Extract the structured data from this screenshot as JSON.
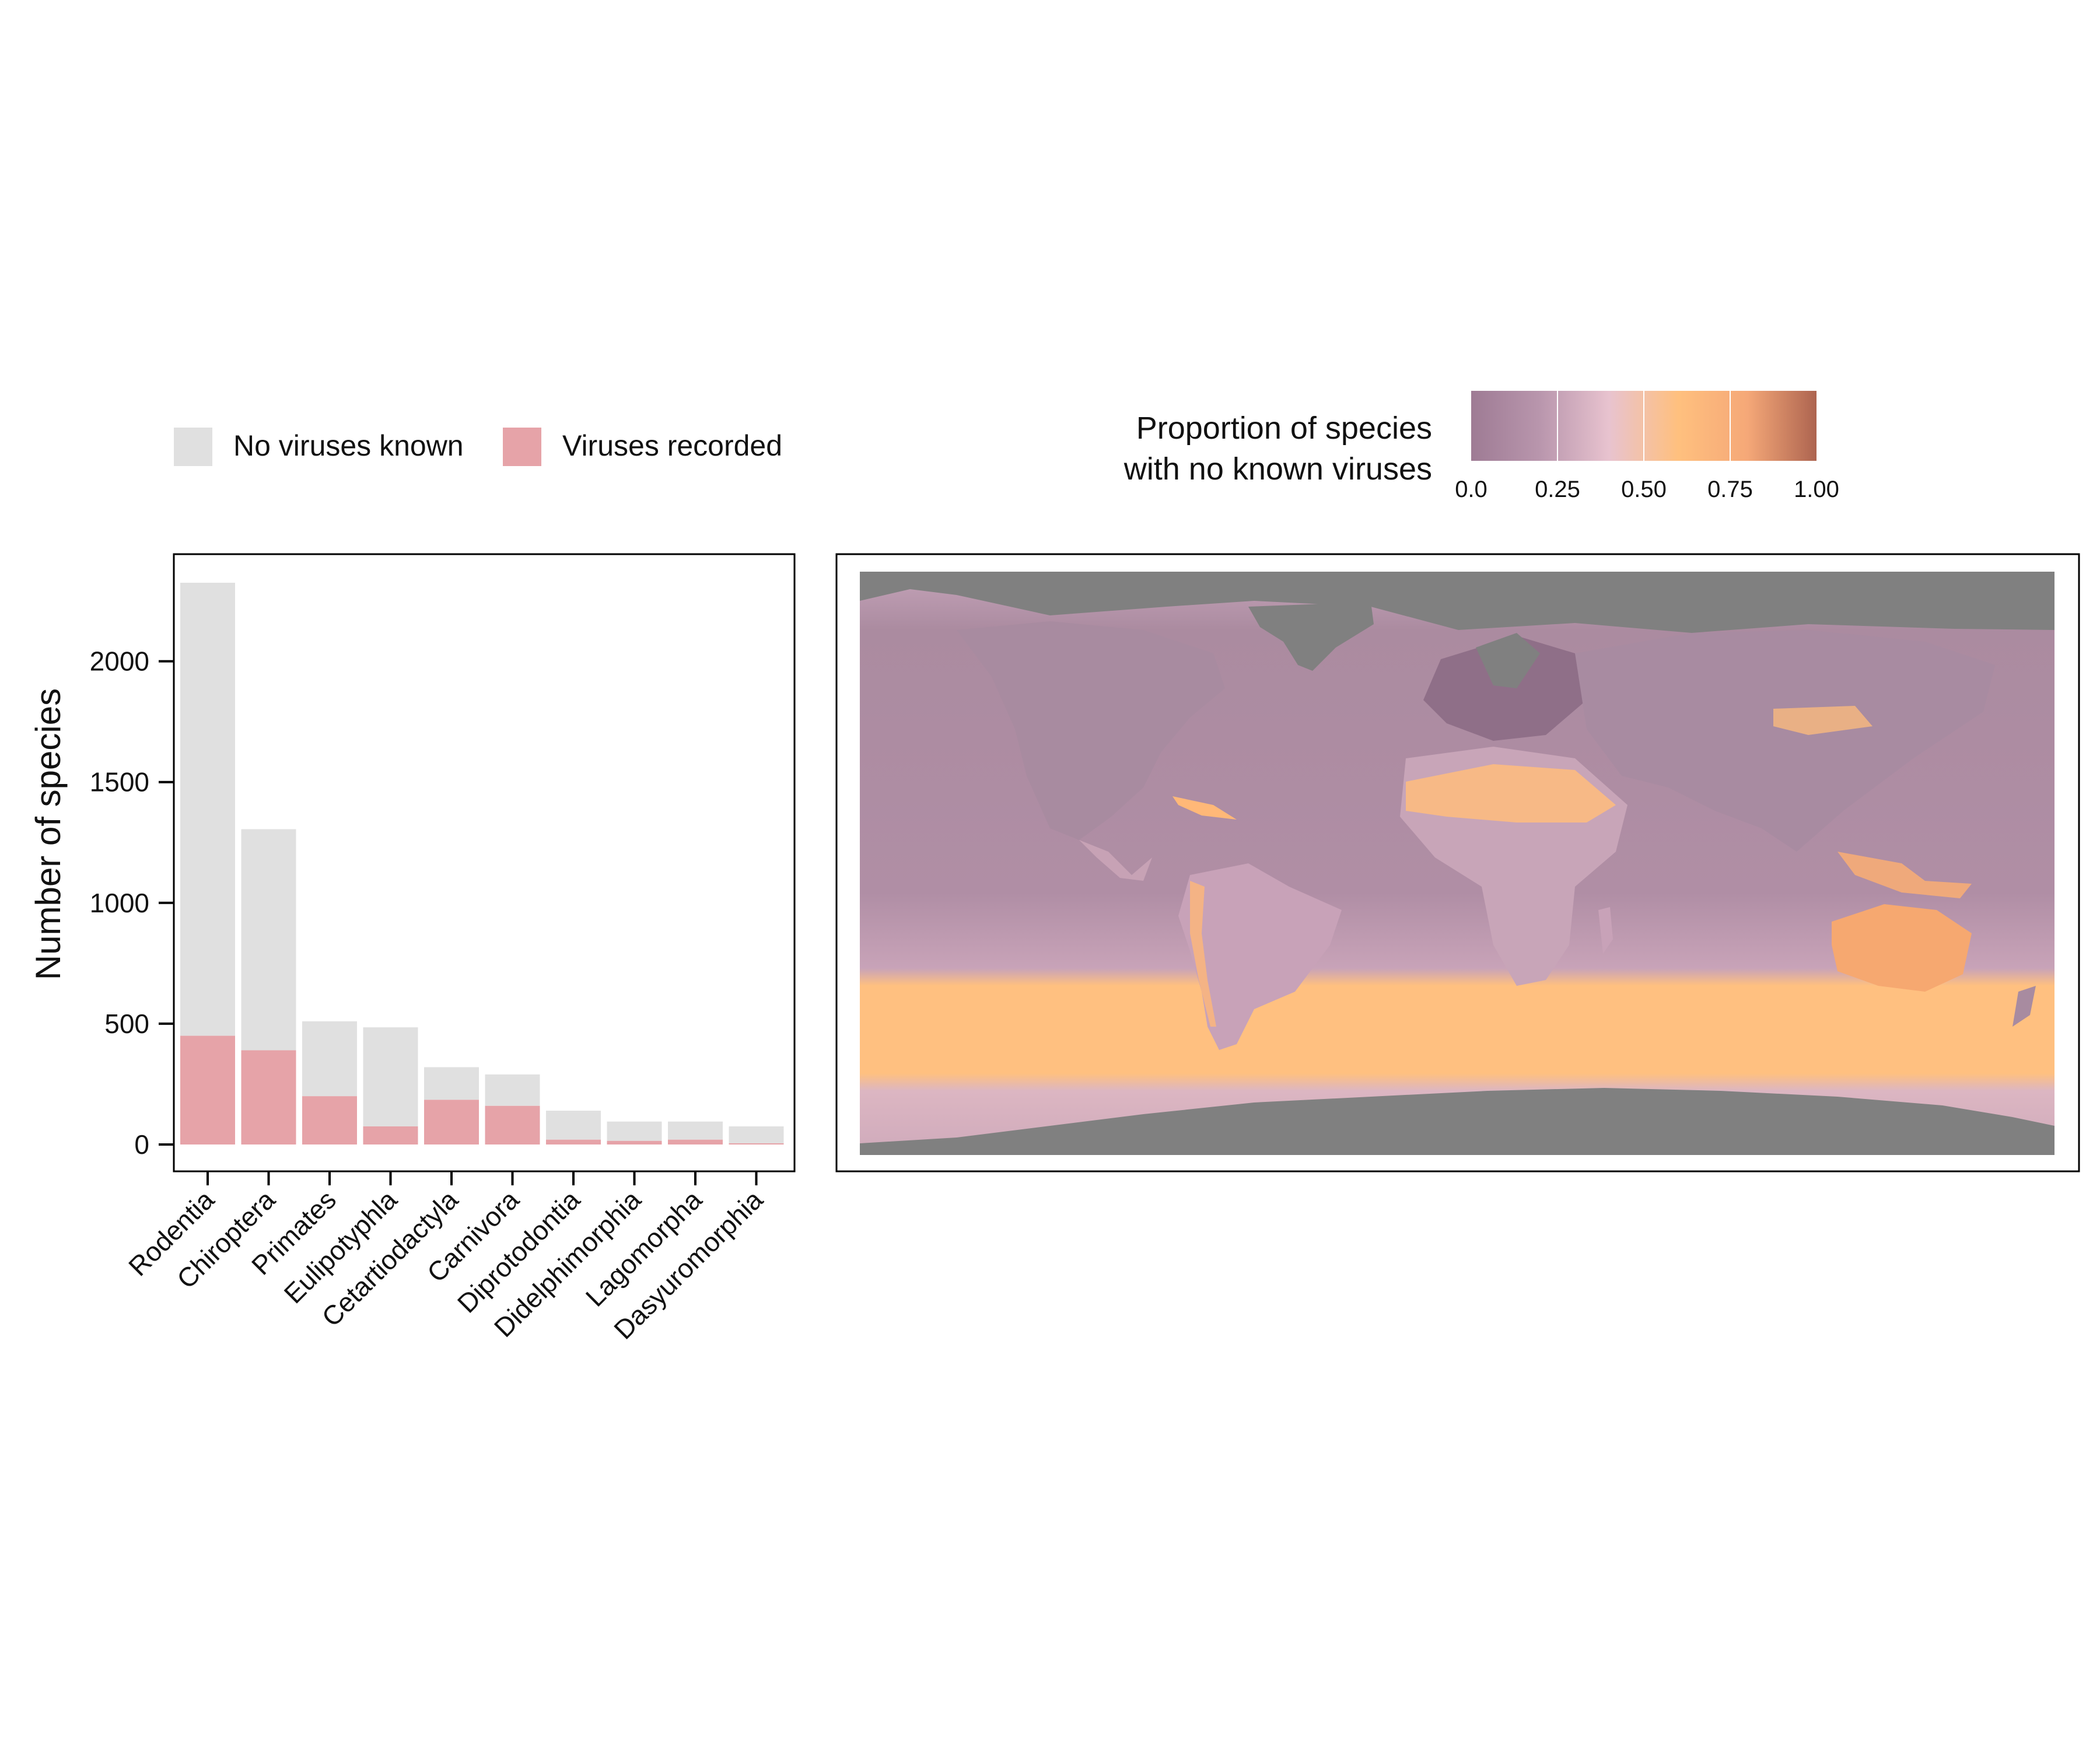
{
  "chart_data": [
    {
      "type": "bar",
      "stacked": true,
      "title": "",
      "xlabel": "",
      "ylabel": "Number of species",
      "ylim": [
        0,
        2400
      ],
      "yticks": [
        0,
        500,
        1000,
        1500,
        2000
      ],
      "grid": false,
      "legend": {
        "placement": "top-left",
        "items": [
          {
            "label": "No viruses known",
            "color": "#e0e0e0"
          },
          {
            "label": "Viruses recorded",
            "color": "#e6a3a8"
          }
        ]
      },
      "categories": [
        "Rodentia",
        "Chiroptera",
        "Primates",
        "Eulipotyphla",
        "Cetartiodactyla",
        "Carnivora",
        "Diprotodontia",
        "Didelphimorphia",
        "Lagomorpha",
        "Dasyuromorphia"
      ],
      "series": [
        {
          "name": "Viruses recorded",
          "color": "#e6a3a8",
          "values": [
            450,
            390,
            200,
            75,
            185,
            160,
            20,
            15,
            20,
            5
          ]
        },
        {
          "name": "No viruses known",
          "color": "#e0e0e0",
          "values": [
            1875,
            915,
            310,
            410,
            135,
            130,
            120,
            80,
            75,
            70
          ]
        }
      ]
    },
    {
      "type": "heatmap",
      "subtype": "world-map",
      "title": "",
      "colorbar": {
        "title_lines": [
          "Proportion of species",
          "with no known viruses"
        ],
        "range": [
          0,
          1
        ],
        "ticks": [
          "0.0",
          "0.25",
          "0.50",
          "0.75",
          "1.00"
        ],
        "tick_values": [
          0,
          0.25,
          0.5,
          0.75,
          1.0
        ],
        "colors": [
          "#9e7b94",
          "#b996ad",
          "#e8c3cf",
          "#ffc07e",
          "#f5a878",
          "#ad6450"
        ],
        "placement": "top"
      },
      "land_no_data_color": "#808080",
      "background_color": "#b692a8"
    }
  ]
}
